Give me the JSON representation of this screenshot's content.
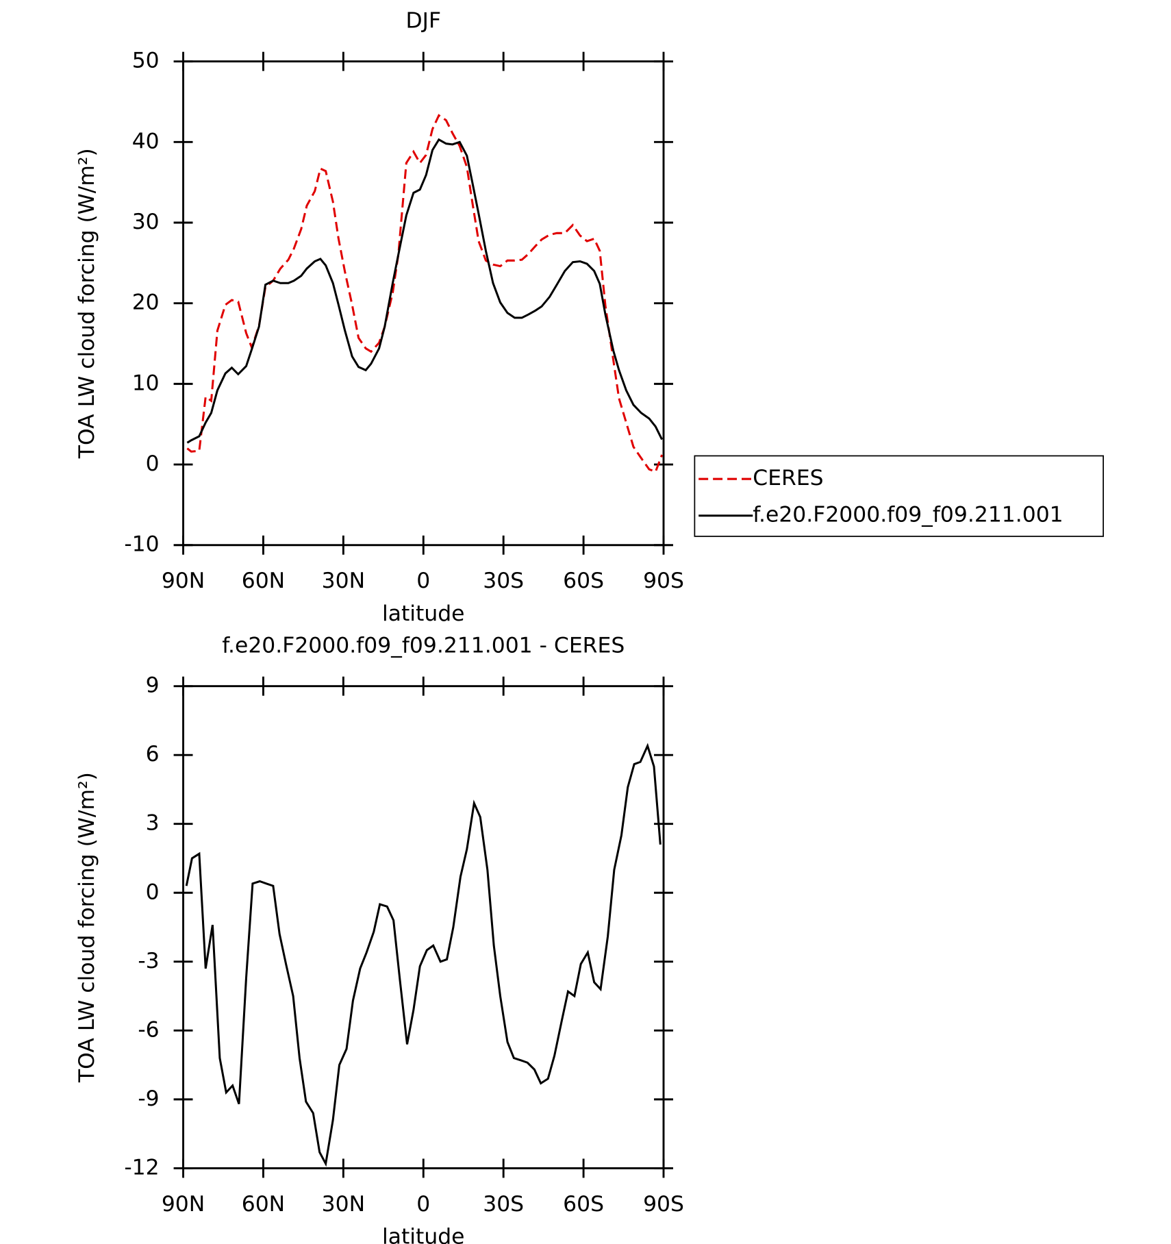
{
  "chart_data": [
    {
      "type": "line",
      "title": "DJF",
      "xlabel": "latitude",
      "ylabel": "TOA LW cloud forcing (W/m²)",
      "xlim": [
        90,
        -90
      ],
      "xticks": [
        {
          "value": 90,
          "label": "90N"
        },
        {
          "value": 60,
          "label": "60N"
        },
        {
          "value": 30,
          "label": "30N"
        },
        0,
        {
          "value": -30,
          "label": "30S"
        },
        {
          "value": -60,
          "label": "60S"
        },
        {
          "value": -90,
          "label": "90S"
        }
      ],
      "ylim": [
        -10,
        50
      ],
      "yticks": [
        -10,
        0,
        10,
        20,
        30,
        40,
        50
      ],
      "legend": "outside right",
      "x": [
        88.5,
        87.0,
        84.0,
        81.6,
        79.5,
        77.2,
        74.2,
        71.8,
        69.4,
        66.4,
        64.3,
        61.6,
        59.2,
        56.3,
        53.6,
        50.6,
        48.5,
        45.8,
        43.7,
        40.7,
        38.6,
        36.6,
        33.9,
        31.8,
        29.4,
        26.7,
        24.3,
        21.6,
        19.6,
        16.6,
        14.5,
        11.5,
        9.4,
        6.4,
        3.7,
        1.3,
        -1.0,
        -3.4,
        -5.8,
        -8.5,
        -10.9,
        -13.6,
        -16.3,
        -18.4,
        -20.7,
        -23.4,
        -26.1,
        -28.8,
        -31.5,
        -34.2,
        -36.9,
        -39.3,
        -42.0,
        -44.3,
        -47.3,
        -50.0,
        -53.0,
        -56.0,
        -58.7,
        -61.3,
        -64.0,
        -66.1,
        -68.2,
        -71.2,
        -73.3,
        -76.0,
        -78.7,
        -81.6,
        -84.6,
        -87.0,
        -89.4
      ],
      "series": [
        {
          "name": "CERES",
          "color": "#e00000",
          "linestyle": "dashed",
          "values": [
            2.0,
            1.6,
            1.7,
            8.4,
            7.9,
            16.6,
            19.8,
            20.4,
            20.2,
            16.3,
            14.5,
            17.2,
            22.0,
            22.8,
            24.3,
            25.4,
            26.8,
            29.2,
            32.1,
            33.9,
            36.7,
            36.4,
            32.6,
            28.0,
            23.9,
            19.8,
            15.7,
            14.4,
            14.0,
            15.1,
            17.1,
            21.3,
            26.0,
            37.4,
            38.8,
            37.4,
            38.4,
            41.6,
            43.3,
            42.7,
            41.1,
            39.5,
            36.9,
            32.4,
            27.7,
            25.3,
            24.8,
            24.6,
            25.3,
            25.3,
            25.4,
            26.1,
            27.1,
            27.9,
            28.5,
            28.7,
            28.7,
            29.7,
            28.4,
            27.7,
            28.0,
            26.5,
            19.7,
            12.9,
            8.2,
            5.2,
            2.2,
            0.8,
            -0.6,
            -0.9,
            1.2
          ]
        },
        {
          "name": "f.e20.F2000.f09_f09.211.001",
          "color": "#000000",
          "linestyle": "solid",
          "values": [
            2.7,
            3.0,
            3.5,
            5.2,
            6.4,
            9.2,
            11.3,
            12.0,
            11.2,
            12.2,
            14.3,
            17.1,
            22.3,
            22.8,
            22.5,
            22.5,
            22.8,
            23.4,
            24.3,
            25.2,
            25.5,
            24.7,
            22.5,
            19.8,
            16.6,
            13.4,
            12.1,
            11.7,
            12.5,
            14.4,
            17.1,
            22.5,
            26.0,
            30.9,
            33.7,
            34.1,
            35.9,
            39.0,
            40.3,
            39.8,
            39.7,
            40.0,
            38.3,
            34.9,
            31.1,
            26.5,
            22.5,
            20.1,
            18.8,
            18.2,
            18.2,
            18.6,
            19.1,
            19.6,
            20.8,
            22.3,
            24.0,
            25.1,
            25.2,
            24.9,
            24.0,
            22.4,
            18.6,
            14.1,
            11.7,
            9.2,
            7.4,
            6.4,
            5.7,
            4.7,
            3.1
          ]
        }
      ]
    },
    {
      "type": "line",
      "title": "f.e20.F2000.f09_f09.211.001 - CERES",
      "xlabel": "latitude",
      "ylabel": "TOA LW cloud forcing (W/m²)",
      "xlim": [
        90,
        -90
      ],
      "xticks": [
        {
          "value": 90,
          "label": "90N"
        },
        {
          "value": 60,
          "label": "60N"
        },
        {
          "value": 30,
          "label": "30N"
        },
        0,
        {
          "value": -30,
          "label": "30S"
        },
        {
          "value": -60,
          "label": "60S"
        },
        {
          "value": -90,
          "label": "90S"
        }
      ],
      "ylim": [
        -12,
        9
      ],
      "yticks": [
        -12,
        -9,
        -6,
        -3,
        0,
        3,
        6,
        9
      ],
      "x": [
        88.8,
        86.7,
        84.0,
        81.6,
        79.0,
        76.3,
        73.9,
        71.5,
        69.1,
        66.4,
        64.0,
        61.3,
        58.9,
        56.3,
        53.9,
        51.5,
        48.8,
        46.4,
        44.0,
        41.3,
        38.9,
        36.6,
        33.9,
        31.5,
        28.8,
        26.4,
        23.7,
        21.3,
        18.6,
        16.3,
        13.6,
        11.2,
        8.8,
        6.1,
        3.7,
        1.3,
        -1.3,
        -3.7,
        -6.4,
        -8.8,
        -11.2,
        -13.9,
        -16.3,
        -19.0,
        -21.3,
        -24.0,
        -26.4,
        -28.8,
        -31.5,
        -33.9,
        -36.6,
        -39.0,
        -41.6,
        -44.0,
        -46.7,
        -49.1,
        -51.8,
        -54.2,
        -56.6,
        -59.0,
        -61.6,
        -64.0,
        -66.4,
        -69.1,
        -71.5,
        -74.2,
        -76.6,
        -79.0,
        -81.3,
        -84.0,
        -86.4,
        -88.8
      ],
      "series": [
        {
          "color": "#000000",
          "linestyle": "solid",
          "values": [
            0.3,
            1.5,
            1.7,
            -3.3,
            -1.4,
            -7.2,
            -8.7,
            -8.4,
            -9.2,
            -3.7,
            0.4,
            0.5,
            0.4,
            0.3,
            -1.8,
            -3.1,
            -4.5,
            -7.2,
            -9.1,
            -9.6,
            -11.3,
            -11.8,
            -9.9,
            -7.5,
            -6.8,
            -4.7,
            -3.3,
            -2.6,
            -1.7,
            -0.5,
            -0.6,
            -1.2,
            -3.8,
            -6.6,
            -5.1,
            -3.2,
            -2.5,
            -2.3,
            -3.0,
            -2.9,
            -1.5,
            0.7,
            1.9,
            3.9,
            3.3,
            1.0,
            -2.3,
            -4.5,
            -6.5,
            -7.2,
            -7.3,
            -7.4,
            -7.7,
            -8.3,
            -8.1,
            -7.1,
            -5.6,
            -4.3,
            -4.5,
            -3.1,
            -2.6,
            -3.9,
            -4.2,
            -1.9,
            1.0,
            2.5,
            4.6,
            5.6,
            5.7,
            6.4,
            5.5,
            2.1
          ]
        }
      ]
    }
  ]
}
